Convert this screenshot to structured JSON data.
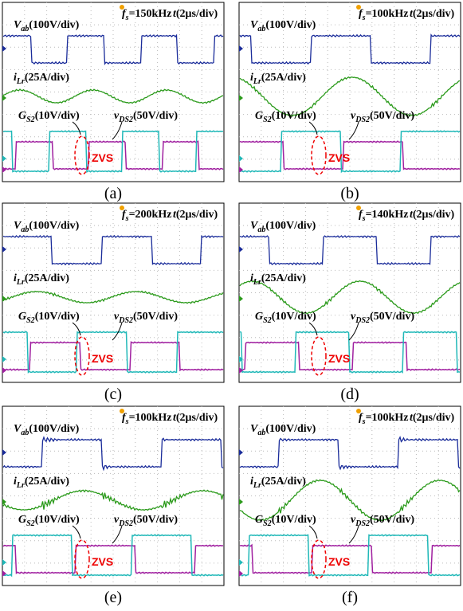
{
  "panels": [
    {
      "caption": "(a)",
      "vab": {
        "symbol": "V",
        "sub": "ab",
        "scale": "(100V/div)"
      },
      "fs": {
        "symbol": "f",
        "sub": "s",
        "value": "=150kHz"
      },
      "time": {
        "symbol": "t",
        "scale": "(2μs/div)"
      },
      "ilr": {
        "symbol": "i",
        "sub": "Lr",
        "scale": "(25A/div)"
      },
      "gs2": {
        "symbol": "G",
        "sub": "S2",
        "scale": "(10V/div)"
      },
      "vds2": {
        "symbol": "v",
        "sub": "DS2",
        "scale": "(50V/div)"
      },
      "zvs": "ZVS"
    },
    {
      "caption": "(b)",
      "vab": {
        "symbol": "V",
        "sub": "ab",
        "scale": "(100V/div)"
      },
      "fs": {
        "symbol": "f",
        "sub": "s",
        "value": "=100kHz"
      },
      "time": {
        "symbol": "t",
        "scale": "(2μs/div)"
      },
      "ilr": {
        "symbol": "i",
        "sub": "Lr",
        "scale": "(25A/div)"
      },
      "gs2": {
        "symbol": "G",
        "sub": "S2",
        "scale": "(10V/div)"
      },
      "vds2": {
        "symbol": "v",
        "sub": "DS2",
        "scale": "(50V/div)"
      },
      "zvs": "ZVS"
    },
    {
      "caption": "(c)",
      "vab": {
        "symbol": "V",
        "sub": "ab",
        "scale": "(100V/div)"
      },
      "fs": {
        "symbol": "f",
        "sub": "s",
        "value": "=200kHz"
      },
      "time": {
        "symbol": "t",
        "scale": "(2μs/div)"
      },
      "ilr": {
        "symbol": "i",
        "sub": "Lr",
        "scale": "(25A/div)"
      },
      "gs2": {
        "symbol": "G",
        "sub": "S2",
        "scale": "(10V/div)"
      },
      "vds2": {
        "symbol": "v",
        "sub": "DS2",
        "scale": "(50V/div)"
      },
      "zvs": "ZVS"
    },
    {
      "caption": "(d)",
      "vab": {
        "symbol": "V",
        "sub": "ab",
        "scale": "(100V/div)"
      },
      "fs": {
        "symbol": "f",
        "sub": "s",
        "value": "=140kHz"
      },
      "time": {
        "symbol": "t",
        "scale": "(2μs/div)"
      },
      "ilr": {
        "symbol": "i",
        "sub": "Lr",
        "scale": "(25A/div)"
      },
      "gs2": {
        "symbol": "G",
        "sub": "S2",
        "scale": "(10V/div)"
      },
      "vds2": {
        "symbol": "v",
        "sub": "DS2",
        "scale": "(50V/div)"
      },
      "zvs": "ZVS"
    },
    {
      "caption": "(e)",
      "vab": {
        "symbol": "V",
        "sub": "ab",
        "scale": "(100V/div)"
      },
      "fs": {
        "symbol": "f",
        "sub": "s",
        "value": "=100kHz"
      },
      "time": {
        "symbol": "t",
        "scale": "(2μs/div)"
      },
      "ilr": {
        "symbol": "i",
        "sub": "Lr",
        "scale": "(25A/div)"
      },
      "gs2": {
        "symbol": "G",
        "sub": "S2",
        "scale": "(10V/div)"
      },
      "vds2": {
        "symbol": "v",
        "sub": "DS2",
        "scale": "(50V/div)"
      },
      "zvs": "ZVS"
    },
    {
      "caption": "(f)",
      "vab": {
        "symbol": "V",
        "sub": "ab",
        "scale": "(100V/div)"
      },
      "fs": {
        "symbol": "f",
        "sub": "s",
        "value": "=100kHz"
      },
      "time": {
        "symbol": "t",
        "scale": "(2μs/div)"
      },
      "ilr": {
        "symbol": "i",
        "sub": "Lr",
        "scale": "(25A/div)"
      },
      "gs2": {
        "symbol": "G",
        "sub": "S2",
        "scale": "(10V/div)"
      },
      "vds2": {
        "symbol": "v",
        "sub": "DS2",
        "scale": "(50V/div)"
      },
      "zvs": "ZVS"
    }
  ]
}
